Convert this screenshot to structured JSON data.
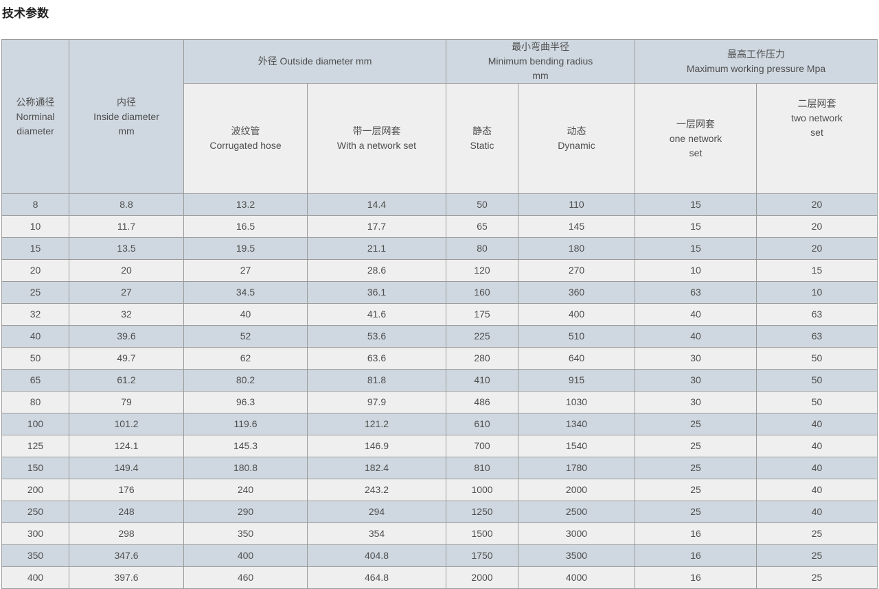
{
  "page_title": "技术参数",
  "colors": {
    "row_blue": "#cfd8e0",
    "row_light": "#efefef",
    "border": "#9a9a9a",
    "text": "#4e4e4e",
    "title": "#222222"
  },
  "table": {
    "header": {
      "nominal_diameter": "公称通径\nNorminal\ndiameter",
      "inside_diameter": "内径\nInside diameter\nmm",
      "outside_diameter_group": "外径 Outside diameter mm",
      "corrugated_hose": "波纹管\nCorrugated hose",
      "with_network_set": "带一层网套\nWith a network set",
      "bending_radius_group": "最小弯曲半径\nMinimum bending radius\nmm",
      "static_col": "静态\nStatic",
      "dynamic_col": "动态\nDynamic",
      "pressure_group": "最高工作压力\nMaximum working pressure Mpa",
      "one_network_set": "一层网套\none network\nset",
      "two_network_set": "二层网套\ntwo network\nset"
    },
    "rows": [
      [
        "8",
        "8.8",
        "13.2",
        "14.4",
        "50",
        "110",
        "15",
        "20"
      ],
      [
        "10",
        "11.7",
        "16.5",
        "17.7",
        "65",
        "145",
        "15",
        "20"
      ],
      [
        "15",
        "13.5",
        "19.5",
        "21.1",
        "80",
        "180",
        "15",
        "20"
      ],
      [
        "20",
        "20",
        "27",
        "28.6",
        "120",
        "270",
        "10",
        "15"
      ],
      [
        "25",
        "27",
        "34.5",
        "36.1",
        "160",
        "360",
        "63",
        "10"
      ],
      [
        "32",
        "32",
        "40",
        "41.6",
        "175",
        "400",
        "40",
        "63"
      ],
      [
        "40",
        "39.6",
        "52",
        "53.6",
        "225",
        "510",
        "40",
        "63"
      ],
      [
        "50",
        "49.7",
        "62",
        "63.6",
        "280",
        "640",
        "30",
        "50"
      ],
      [
        "65",
        "61.2",
        "80.2",
        "81.8",
        "410",
        "915",
        "30",
        "50"
      ],
      [
        "80",
        "79",
        "96.3",
        "97.9",
        "486",
        "1030",
        "30",
        "50"
      ],
      [
        "100",
        "101.2",
        "119.6",
        "121.2",
        "610",
        "1340",
        "25",
        "40"
      ],
      [
        "125",
        "124.1",
        "145.3",
        "146.9",
        "700",
        "1540",
        "25",
        "40"
      ],
      [
        "150",
        "149.4",
        "180.8",
        "182.4",
        "810",
        "1780",
        "25",
        "40"
      ],
      [
        "200",
        "176",
        "240",
        "243.2",
        "1000",
        "2000",
        "25",
        "40"
      ],
      [
        "250",
        "248",
        "290",
        "294",
        "1250",
        "2500",
        "25",
        "40"
      ],
      [
        "300",
        "298",
        "350",
        "354",
        "1500",
        "3000",
        "16",
        "25"
      ],
      [
        "350",
        "347.6",
        "400",
        "404.8",
        "1750",
        "3500",
        "16",
        "25"
      ],
      [
        "400",
        "397.6",
        "460",
        "464.8",
        "2000",
        "4000",
        "16",
        "25"
      ]
    ]
  }
}
